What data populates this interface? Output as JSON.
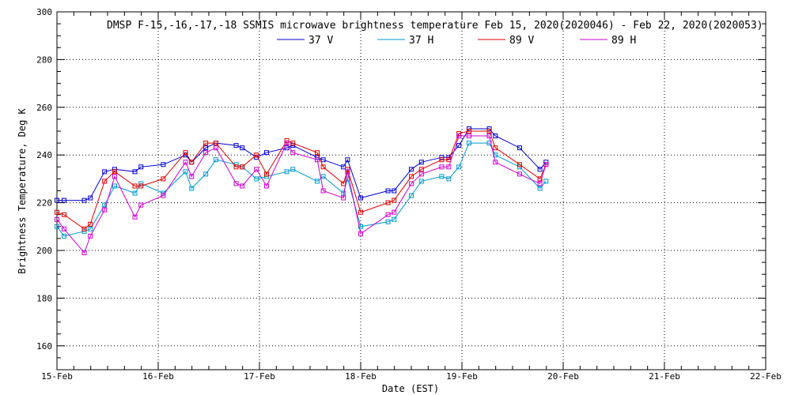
{
  "chart_data": {
    "type": "line",
    "title": "DMSP F-15,-16,-17,-18 SSMIS microwave brightness temperature Feb 15, 2020(2020046) - Feb 22, 2020(2020053)",
    "xlabel": "Date (EST)",
    "ylabel": "Brightness Temperature, Deg K",
    "xlim": [
      0,
      7
    ],
    "ylim": [
      150,
      300
    ],
    "x_tick_labels": [
      "15-Feb",
      "16-Feb",
      "17-Feb",
      "18-Feb",
      "19-Feb",
      "20-Feb",
      "21-Feb",
      "22-Feb"
    ],
    "y_ticks": [
      160,
      180,
      200,
      220,
      240,
      260,
      280,
      300
    ],
    "grid": true,
    "legend_position": "top",
    "series": [
      {
        "name": "37 V",
        "color": "#0000cc",
        "x": [
          0.0,
          0.07,
          0.27,
          0.33,
          0.47,
          0.57,
          0.77,
          0.83,
          1.05,
          1.27,
          1.33,
          1.47,
          1.57,
          1.77,
          1.83,
          1.97,
          2.07,
          2.27,
          2.33,
          2.57,
          2.63,
          2.83,
          2.87,
          3.0,
          3.27,
          3.33,
          3.5,
          3.6,
          3.8,
          3.87,
          3.97,
          4.07,
          4.27,
          4.33,
          4.57,
          4.77,
          4.83
        ],
        "y": [
          221,
          221,
          221,
          222,
          233,
          234,
          233,
          235,
          236,
          240,
          237,
          243,
          245,
          244,
          243,
          239,
          241,
          243,
          244,
          239,
          238,
          235,
          238,
          222,
          225,
          225,
          234,
          237,
          239,
          239,
          244,
          251,
          251,
          248,
          243,
          234,
          237
        ]
      },
      {
        "name": "37 H",
        "color": "#0099cc",
        "x": [
          0.0,
          0.07,
          0.27,
          0.33,
          0.47,
          0.57,
          0.77,
          0.83,
          1.05,
          1.27,
          1.33,
          1.47,
          1.57,
          1.77,
          1.83,
          1.97,
          2.07,
          2.27,
          2.33,
          2.57,
          2.63,
          2.83,
          2.87,
          3.0,
          3.27,
          3.33,
          3.5,
          3.6,
          3.8,
          3.87,
          3.97,
          4.07,
          4.27,
          4.33,
          4.57,
          4.77,
          4.83
        ],
        "y": [
          210,
          206,
          208,
          209,
          219,
          227,
          224,
          228,
          224,
          233,
          226,
          232,
          238,
          236,
          235,
          230,
          231,
          233,
          234,
          229,
          231,
          224,
          230,
          210,
          212,
          213,
          223,
          229,
          231,
          230,
          235,
          245,
          245,
          240,
          235,
          226,
          229
        ]
      },
      {
        "name": "89 V",
        "color": "#dd0000",
        "x": [
          0.0,
          0.07,
          0.27,
          0.33,
          0.47,
          0.57,
          0.77,
          0.83,
          1.05,
          1.27,
          1.33,
          1.47,
          1.57,
          1.77,
          1.83,
          1.97,
          2.07,
          2.27,
          2.33,
          2.57,
          2.63,
          2.83,
          2.87,
          3.0,
          3.27,
          3.33,
          3.5,
          3.6,
          3.8,
          3.87,
          3.97,
          4.07,
          4.27,
          4.33,
          4.57,
          4.77,
          4.83
        ],
        "y": [
          216,
          215,
          209,
          211,
          229,
          233,
          227,
          227,
          230,
          241,
          237,
          245,
          245,
          235,
          235,
          240,
          232,
          246,
          245,
          241,
          235,
          228,
          234,
          216,
          220,
          221,
          231,
          234,
          238,
          238,
          249,
          250,
          250,
          243,
          236,
          230,
          236
        ]
      },
      {
        "name": "89 H",
        "color": "#cc00cc",
        "x": [
          0.0,
          0.07,
          0.27,
          0.33,
          0.47,
          0.57,
          0.77,
          0.83,
          1.05,
          1.27,
          1.33,
          1.47,
          1.57,
          1.77,
          1.83,
          1.97,
          2.07,
          2.27,
          2.33,
          2.57,
          2.63,
          2.83,
          2.87,
          3.0,
          3.27,
          3.33,
          3.5,
          3.6,
          3.8,
          3.87,
          3.97,
          4.07,
          4.27,
          4.33,
          4.57,
          4.77,
          4.83
        ],
        "y": [
          213,
          209,
          199,
          206,
          217,
          231,
          214,
          219,
          223,
          237,
          231,
          241,
          243,
          228,
          227,
          234,
          227,
          245,
          241,
          238,
          225,
          222,
          233,
          207,
          215,
          216,
          228,
          232,
          235,
          235,
          248,
          248,
          248,
          237,
          232,
          228,
          236
        ]
      }
    ]
  }
}
